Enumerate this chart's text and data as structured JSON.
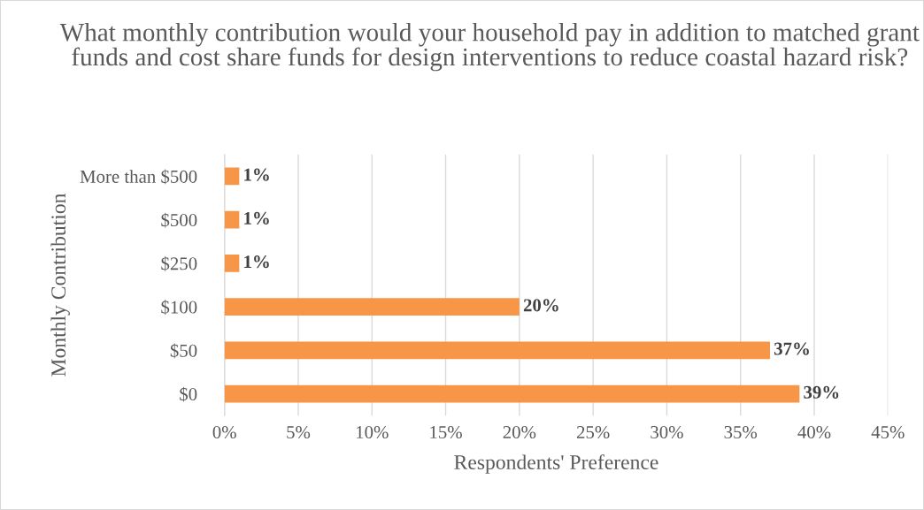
{
  "chart_data": {
    "type": "bar",
    "orientation": "horizontal",
    "title": "What monthly contribution would your household pay in addition to matched grant funds and cost share funds for design interventions to reduce coastal hazard risk?",
    "xlabel": "Respondents' Preference",
    "ylabel": "Monthly Contribution",
    "categories": [
      "More than $500",
      "$500",
      "$250",
      "$100",
      "$50",
      "$0"
    ],
    "values": [
      1,
      1,
      1,
      20,
      37,
      39
    ],
    "value_labels": [
      "1%",
      "1%",
      "1%",
      "20%",
      "37%",
      "39%"
    ],
    "color": "#f79646",
    "xlim": [
      0,
      45
    ],
    "xticks": [
      {
        "value": 0,
        "label": "0%"
      },
      {
        "value": 5,
        "label": "5%"
      },
      {
        "value": 10,
        "label": "10%"
      },
      {
        "value": 15,
        "label": "15%"
      },
      {
        "value": 20,
        "label": "20%"
      },
      {
        "value": 25,
        "label": "25%"
      },
      {
        "value": 30,
        "label": "30%"
      },
      {
        "value": 35,
        "label": "35%"
      },
      {
        "value": 40,
        "label": "40%"
      },
      {
        "value": 45,
        "label": "45%"
      }
    ],
    "grid": "x",
    "legend": false
  }
}
